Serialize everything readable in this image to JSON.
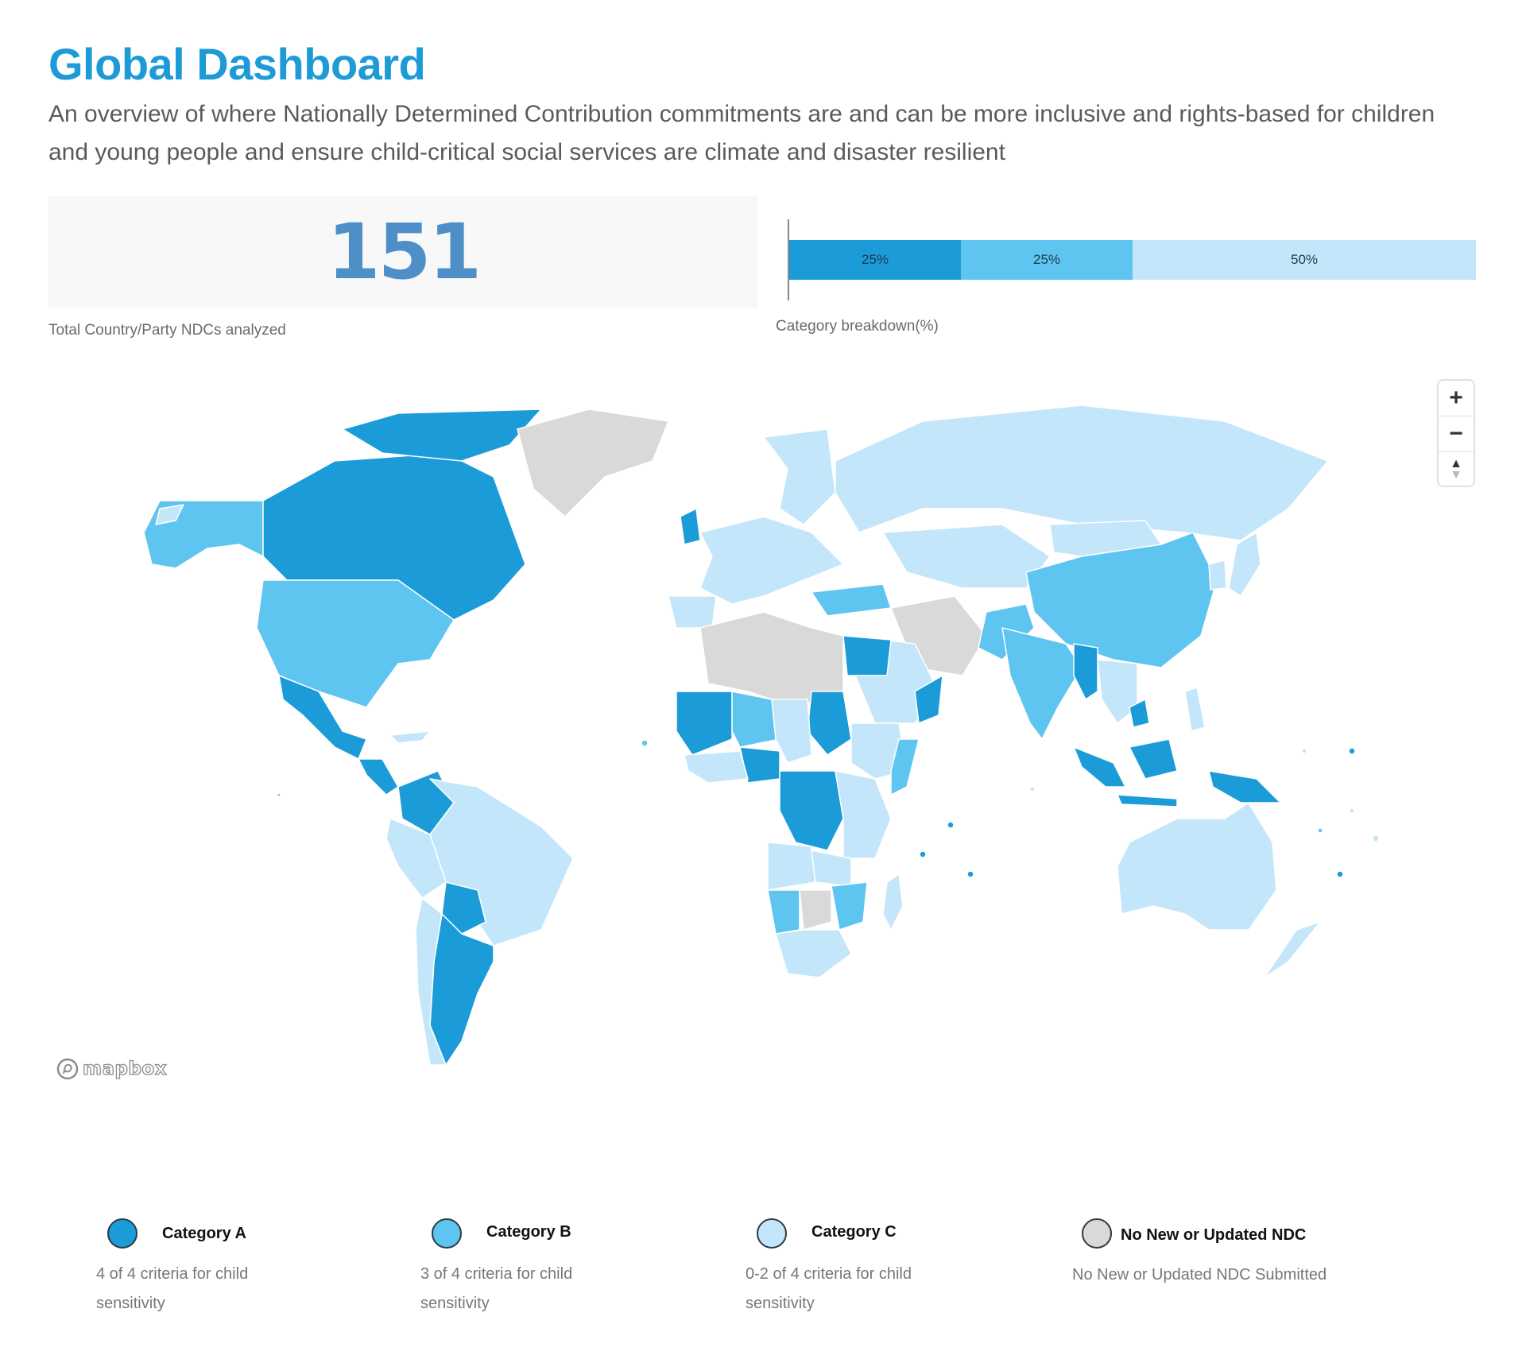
{
  "header": {
    "title": "Global Dashboard",
    "subtitle": "An overview of where Nationally Determined Contribution commitments are and can be more inclusive and rights-based for children and young people and ensure child-critical social services are climate and disaster resilient"
  },
  "stats": {
    "total_value": "151",
    "total_caption": "Total Country/Party NDCs analyzed",
    "breakdown_caption": "Category breakdown(%)",
    "breakdown": [
      {
        "label": "25%",
        "percent": 25,
        "color": "#1b9cd8"
      },
      {
        "label": "25%",
        "percent": 25,
        "color": "#5ec4f0"
      },
      {
        "label": "50%",
        "percent": 50,
        "color": "#c3e6fa"
      }
    ]
  },
  "map": {
    "attribution": "mapbox",
    "controls": {
      "zoom_in": "+",
      "zoom_out": "−",
      "compass": "▲"
    },
    "colors": {
      "category_a": "#1b9cd8",
      "category_b": "#5ec4f0",
      "category_c": "#c3e6fa",
      "no_ndc": "#d9d9d9"
    }
  },
  "legend": [
    {
      "title": "Category A",
      "desc_line1": "4 of 4 criteria for child",
      "desc_line2": "sensitivity",
      "color": "#1b9cd8"
    },
    {
      "title": "Category B",
      "desc_line1": "3 of 4 criteria for child",
      "desc_line2": "sensitivity",
      "color": "#5ec4f0"
    },
    {
      "title": "Category C",
      "desc_line1": "0-2 of 4 criteria for child",
      "desc_line2": "sensitivity",
      "color": "#c3e6fa"
    },
    {
      "title": "No New or Updated NDC",
      "desc_line1": "No New or Updated NDC Submitted",
      "desc_line2": "",
      "color": "#d9d9d9"
    }
  ]
}
